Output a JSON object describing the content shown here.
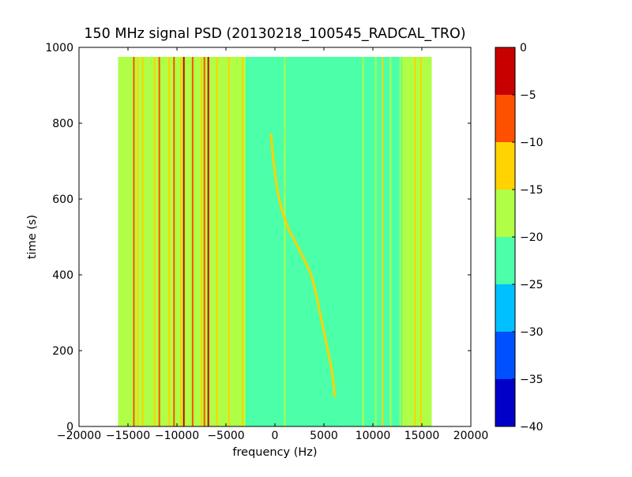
{
  "chart_data": {
    "type": "heatmap",
    "title": "150 MHz signal PSD (20130218_100545_RADCAL_TRO)",
    "xlabel": "frequency (Hz)",
    "ylabel": "time (s)",
    "xlim": [
      -20000,
      20000
    ],
    "ylim": [
      0,
      1000
    ],
    "data_extent": {
      "x": [
        -16000,
        16000
      ],
      "y": [
        0,
        975
      ]
    },
    "x_ticks": [
      -20000,
      -15000,
      -10000,
      -5000,
      0,
      5000,
      10000,
      15000,
      20000
    ],
    "x_tick_labels": [
      "−20000",
      "−15000",
      "−10000",
      "−5000",
      "0",
      "5000",
      "10000",
      "15000",
      "20000"
    ],
    "y_ticks": [
      0,
      200,
      400,
      600,
      800,
      1000
    ],
    "y_tick_labels": [
      "0",
      "200",
      "400",
      "600",
      "800",
      "1000"
    ],
    "background_level_db": -25,
    "colorbar": {
      "levels": [
        -40,
        -35,
        -30,
        -25,
        -20,
        -15,
        -10,
        -5,
        0
      ],
      "tick_labels": [
        "−40",
        "−35",
        "−30",
        "−25",
        "−20",
        "−15",
        "−10",
        "−5",
        "0"
      ],
      "colors": [
        "#0000c8",
        "#0050ff",
        "#00c0ff",
        "#4cffa9",
        "#b0ff46",
        "#ffd200",
        "#ff5000",
        "#c80000"
      ]
    },
    "edge_bands": [
      {
        "from": -16000,
        "to": -3000,
        "level_db": -20
      },
      {
        "from": 13000,
        "to": 16000,
        "level_db": -20
      }
    ],
    "vertical_lines": [
      {
        "freq": -14400,
        "level_db": -10
      },
      {
        "freq": -14000,
        "level_db": -15
      },
      {
        "freq": -13500,
        "level_db": -15
      },
      {
        "freq": -12300,
        "level_db": -15
      },
      {
        "freq": -11800,
        "level_db": -10
      },
      {
        "freq": -10800,
        "level_db": -15
      },
      {
        "freq": -10300,
        "level_db": -10
      },
      {
        "freq": -9600,
        "level_db": -15
      },
      {
        "freq": -9300,
        "level_db": -5
      },
      {
        "freq": -8400,
        "level_db": -10
      },
      {
        "freq": -7500,
        "level_db": -15
      },
      {
        "freq": -7200,
        "level_db": -10
      },
      {
        "freq": -6800,
        "level_db": -5
      },
      {
        "freq": -5900,
        "level_db": -15
      },
      {
        "freq": -5400,
        "level_db": -20
      },
      {
        "freq": -4700,
        "level_db": -15
      },
      {
        "freq": -3300,
        "level_db": -15
      },
      {
        "freq": 1000,
        "level_db": -20
      },
      {
        "freq": 9000,
        "level_db": -20
      },
      {
        "freq": 10300,
        "level_db": -20
      },
      {
        "freq": 11000,
        "level_db": -15
      },
      {
        "freq": 11800,
        "level_db": -20
      },
      {
        "freq": 12800,
        "level_db": -20
      },
      {
        "freq": 14300,
        "level_db": -15
      },
      {
        "freq": 14900,
        "level_db": -15
      }
    ],
    "traces": [
      {
        "level_db": -15,
        "points": [
          [
            -400,
            770
          ],
          [
            -150,
            700
          ],
          [
            200,
            630
          ],
          [
            700,
            570
          ],
          [
            1400,
            520
          ],
          [
            2200,
            480
          ],
          [
            3000,
            440
          ],
          [
            3700,
            400
          ],
          [
            4200,
            350
          ],
          [
            4600,
            300
          ],
          [
            5000,
            250
          ],
          [
            5400,
            200
          ],
          [
            5800,
            150
          ],
          [
            6000,
            110
          ],
          [
            6100,
            80
          ]
        ]
      }
    ]
  }
}
